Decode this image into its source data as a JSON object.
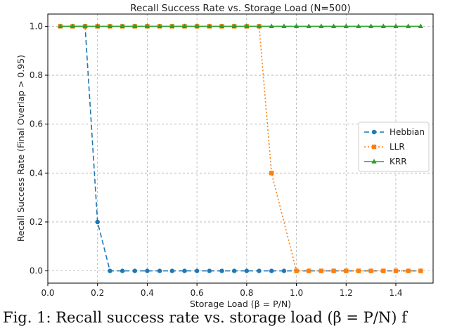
{
  "chart_data": {
    "type": "line",
    "title": "Recall Success Rate vs. Storage Load (N=500)",
    "xlabel": "Storage Load (β = P/N)",
    "ylabel": "Recall Success Rate (Final Overlap > 0.95)",
    "xlim": [
      0.0,
      1.55
    ],
    "ylim": [
      -0.05,
      1.05
    ],
    "xticks": [
      0.0,
      0.2,
      0.4,
      0.6,
      0.8,
      1.0,
      1.2,
      1.4
    ],
    "xtick_labels": [
      "0.0",
      "0.2",
      "0.4",
      "0.6",
      "0.8",
      "1.0",
      "1.2",
      "1.4"
    ],
    "yticks": [
      0.0,
      0.2,
      0.4,
      0.6,
      0.8,
      1.0
    ],
    "ytick_labels": [
      "0.0",
      "0.2",
      "0.4",
      "0.6",
      "0.8",
      "1.0"
    ],
    "grid": true,
    "legend_position": "center-right",
    "x": [
      0.05,
      0.1,
      0.15,
      0.2,
      0.25,
      0.3,
      0.35,
      0.4,
      0.45,
      0.5,
      0.55,
      0.6,
      0.65,
      0.7,
      0.75,
      0.8,
      0.85,
      0.9,
      0.95,
      1.0,
      1.05,
      1.1,
      1.15,
      1.2,
      1.25,
      1.3,
      1.35,
      1.4,
      1.45,
      1.5
    ],
    "series": [
      {
        "name": "Hebbian",
        "color": "#1f77b4",
        "dash": "dashed",
        "marker": "circle",
        "values": [
          1,
          1,
          1,
          0.2,
          0,
          0,
          0,
          0,
          0,
          0,
          0,
          0,
          0,
          0,
          0,
          0,
          0,
          0,
          0,
          0,
          0,
          0,
          0,
          0,
          0,
          0,
          0,
          0,
          0,
          0
        ]
      },
      {
        "name": "LLR",
        "color": "#ff7f0e",
        "dash": "dotted",
        "marker": "square",
        "values": [
          1,
          1,
          1,
          1,
          1,
          1,
          1,
          1,
          1,
          1,
          1,
          1,
          1,
          1,
          1,
          1,
          1,
          0.4,
          null,
          0,
          0,
          0,
          0,
          0,
          0,
          0,
          0,
          0,
          0,
          0
        ]
      },
      {
        "name": "KRR",
        "color": "#2ca02c",
        "dash": "solid",
        "marker": "triangle",
        "values": [
          1,
          1,
          1,
          1,
          1,
          1,
          1,
          1,
          1,
          1,
          1,
          1,
          1,
          1,
          1,
          1,
          1,
          1,
          1,
          1,
          1,
          1,
          1,
          1,
          1,
          1,
          1,
          1,
          1,
          1
        ]
      }
    ]
  },
  "caption": "Fig. 1: Recall success rate vs. storage load (β = P/N) f"
}
